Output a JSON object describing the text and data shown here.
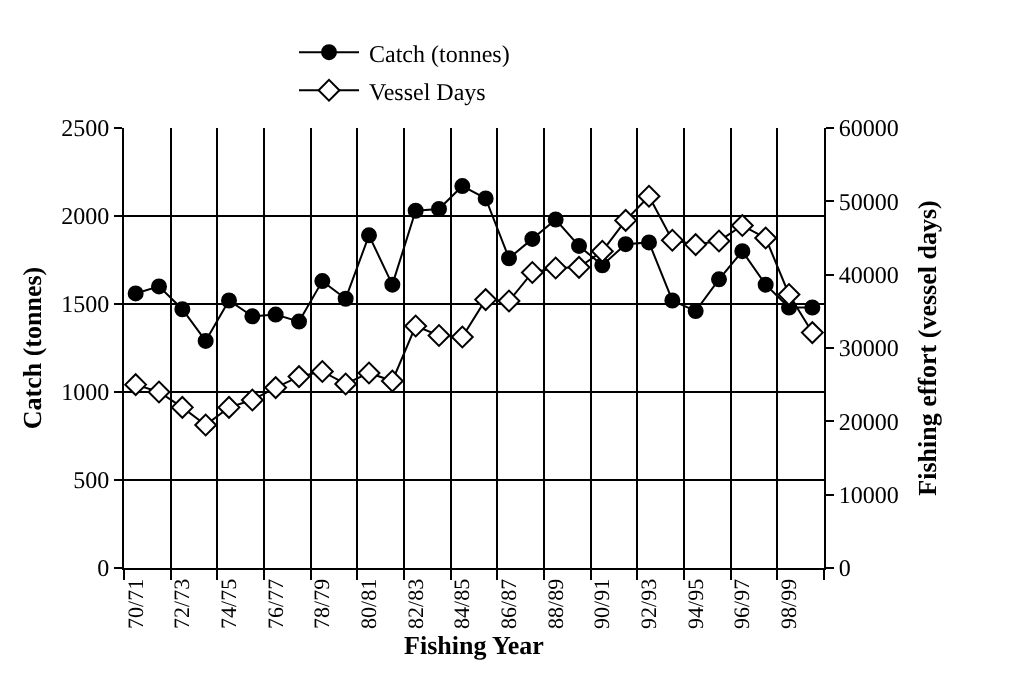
{
  "chart_data": {
    "type": "line",
    "xlabel": "Fishing Year",
    "ylabel": "Catch (tonnes)",
    "y2label": "Fishing effort (vessel days)",
    "categories": [
      "70/71",
      null,
      "72/73",
      null,
      "74/75",
      null,
      "76/77",
      null,
      "78/79",
      null,
      "80/81",
      null,
      "82/83",
      null,
      "84/85",
      null,
      "86/87",
      null,
      "88/89",
      null,
      "90/91",
      null,
      "92/93",
      null,
      "94/95",
      null,
      "96/97",
      null,
      "98/99",
      null
    ],
    "series": [
      {
        "name": "Catch (tonnes)",
        "color": "#000000",
        "marker": "circle",
        "values": [
          1560,
          1600,
          1470,
          1290,
          1520,
          1430,
          1440,
          1400,
          1630,
          1530,
          1890,
          1610,
          2030,
          2040,
          2170,
          2100,
          1760,
          1870,
          1980,
          1830,
          1720,
          1840,
          1850,
          1520,
          1460,
          1640,
          1800,
          1610,
          1480,
          1480
        ]
      },
      {
        "name": "Vessel Days",
        "color": "#000000",
        "marker": "diamond",
        "axis": "y2",
        "values": [
          25000,
          24000,
          21900,
          19500,
          21900,
          22900,
          24600,
          26100,
          26800,
          25100,
          26600,
          25500,
          33000,
          31700,
          31500,
          36600,
          36400,
          40300,
          40900,
          41000,
          43200,
          47400,
          50700,
          44700,
          44100,
          44600,
          46700,
          45000,
          37300,
          32100
        ]
      }
    ],
    "ylim": [
      0,
      2500
    ],
    "yticks": [
      0,
      500,
      1000,
      1500,
      2000,
      2500
    ],
    "y2lim": [
      0,
      60000
    ],
    "y2ticks": [
      0,
      10000,
      20000,
      30000,
      40000,
      50000,
      60000
    ],
    "grid": true,
    "legend": "top",
    "line_style": "solid"
  }
}
